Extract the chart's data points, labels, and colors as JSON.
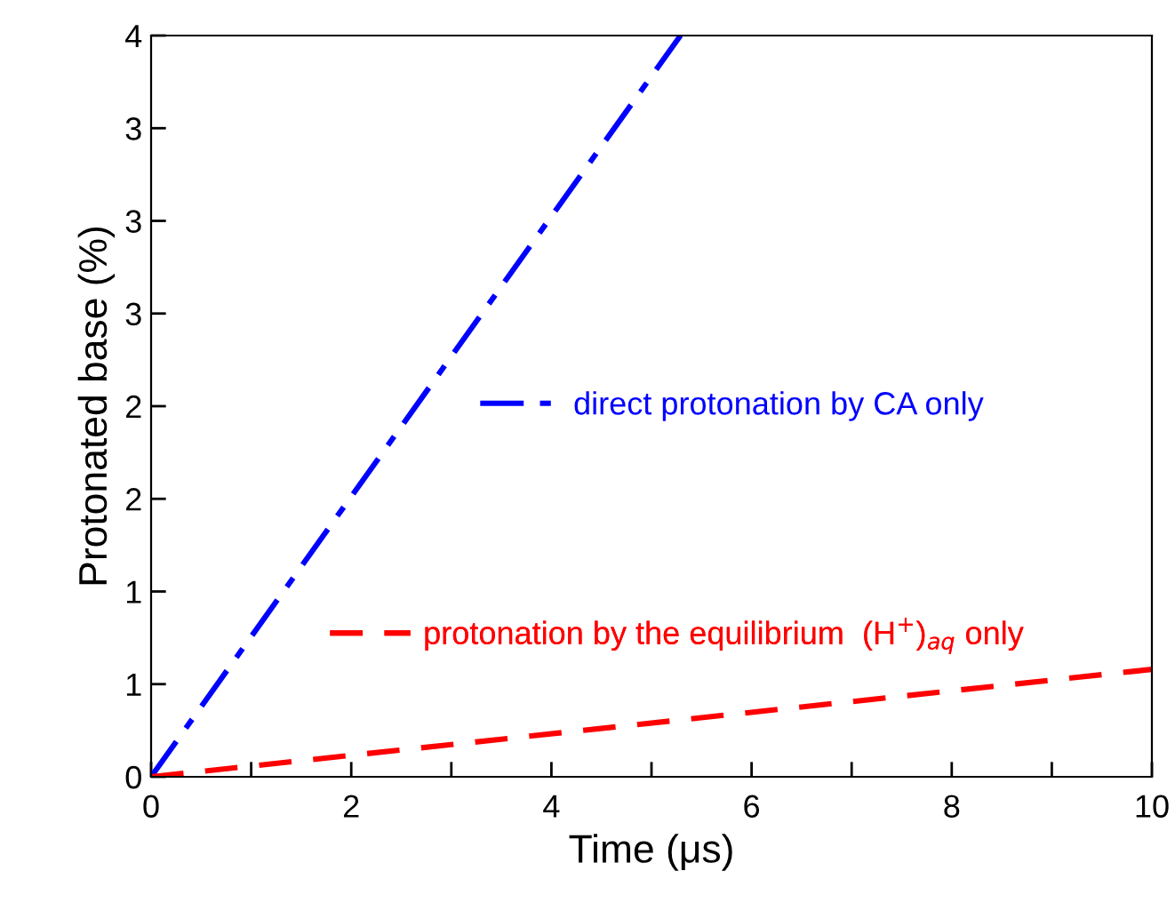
{
  "chart_data": {
    "type": "line",
    "xlabel": "Time (μs)",
    "ylabel": "Protonated base (%)",
    "xlim": [
      0,
      10
    ],
    "ylim": [
      0,
      4
    ],
    "xticks": [
      0,
      {
        "value": 1,
        "label": null
      },
      2,
      {
        "value": 3,
        "label": null
      },
      4,
      {
        "value": 5,
        "label": null
      },
      6,
      {
        "value": 7,
        "label": null
      },
      8,
      {
        "value": 9,
        "label": null
      },
      10
    ],
    "yticks": [
      0,
      {
        "value": 0.5,
        "label": "1"
      },
      {
        "value": 1,
        "label": "1"
      },
      {
        "value": 1.5,
        "label": "2"
      },
      {
        "value": 2,
        "label": "2"
      },
      {
        "value": 2.5,
        "label": "3"
      },
      {
        "value": 3,
        "label": "3"
      },
      {
        "value": 3.5,
        "label": "3"
      },
      {
        "value": 4,
        "label": "4"
      }
    ],
    "series": [
      {
        "name": "direct protonation by CA only",
        "color": "#0000ff",
        "line_style": "dashdot",
        "x": [
          0,
          5.29
        ],
        "values": [
          0,
          4
        ]
      },
      {
        "name": "protonation by the equilibrium  (H$^{+}$)$_{aq}$ only",
        "color": "#ff0000",
        "line_style": "dashed",
        "x": [
          0,
          10
        ],
        "values": [
          0,
          0.58
        ]
      }
    ],
    "legend": "right",
    "grid": false
  }
}
